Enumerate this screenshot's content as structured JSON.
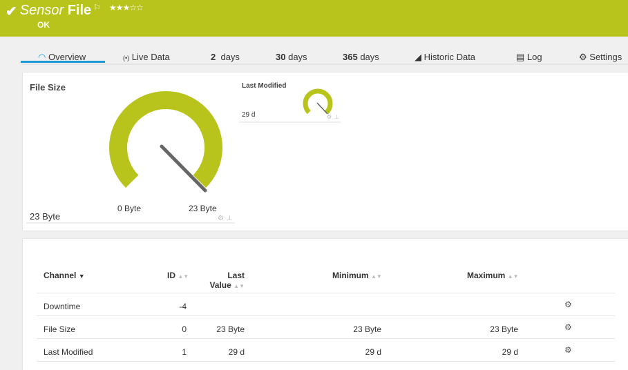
{
  "header": {
    "title_prefix": "Sensor",
    "title_name": "File",
    "status": "OK",
    "rating": 3,
    "rating_max": 5,
    "bg_color": "#b8c41b"
  },
  "tabs": [
    {
      "label": "Overview",
      "icon": "gauge-icon"
    },
    {
      "label": "Live Data",
      "icon": "broadcast-icon"
    },
    {
      "num": "2",
      "label": "days"
    },
    {
      "num": "30",
      "label": "days"
    },
    {
      "num": "365",
      "label": "days"
    },
    {
      "label": "Historic Data",
      "icon": "area-chart-icon"
    },
    {
      "label": "Log",
      "icon": "log-icon"
    },
    {
      "label": "Settings",
      "icon": "gear-icon"
    }
  ],
  "gauges": {
    "file_size": {
      "title": "File Size",
      "value": "23 Byte",
      "min_label": "0 Byte",
      "max_label": "23 Byte",
      "fill_fraction": 1.0
    },
    "last_modified": {
      "title": "Last Modified",
      "value": "29 d",
      "fill_fraction": 1.0
    }
  },
  "table": {
    "headers": {
      "channel": "Channel",
      "id": "ID",
      "last_value_1": "Last",
      "last_value_2": "Value",
      "minimum": "Minimum",
      "maximum": "Maximum"
    },
    "rows": [
      {
        "channel": "Downtime",
        "id": "-4",
        "last": "",
        "min": "",
        "max": ""
      },
      {
        "channel": "File Size",
        "id": "0",
        "last": "23 Byte",
        "min": "23 Byte",
        "max": "23 Byte"
      },
      {
        "channel": "Last Modified",
        "id": "1",
        "last": "29 d",
        "min": "29 d",
        "max": "29 d"
      }
    ]
  }
}
